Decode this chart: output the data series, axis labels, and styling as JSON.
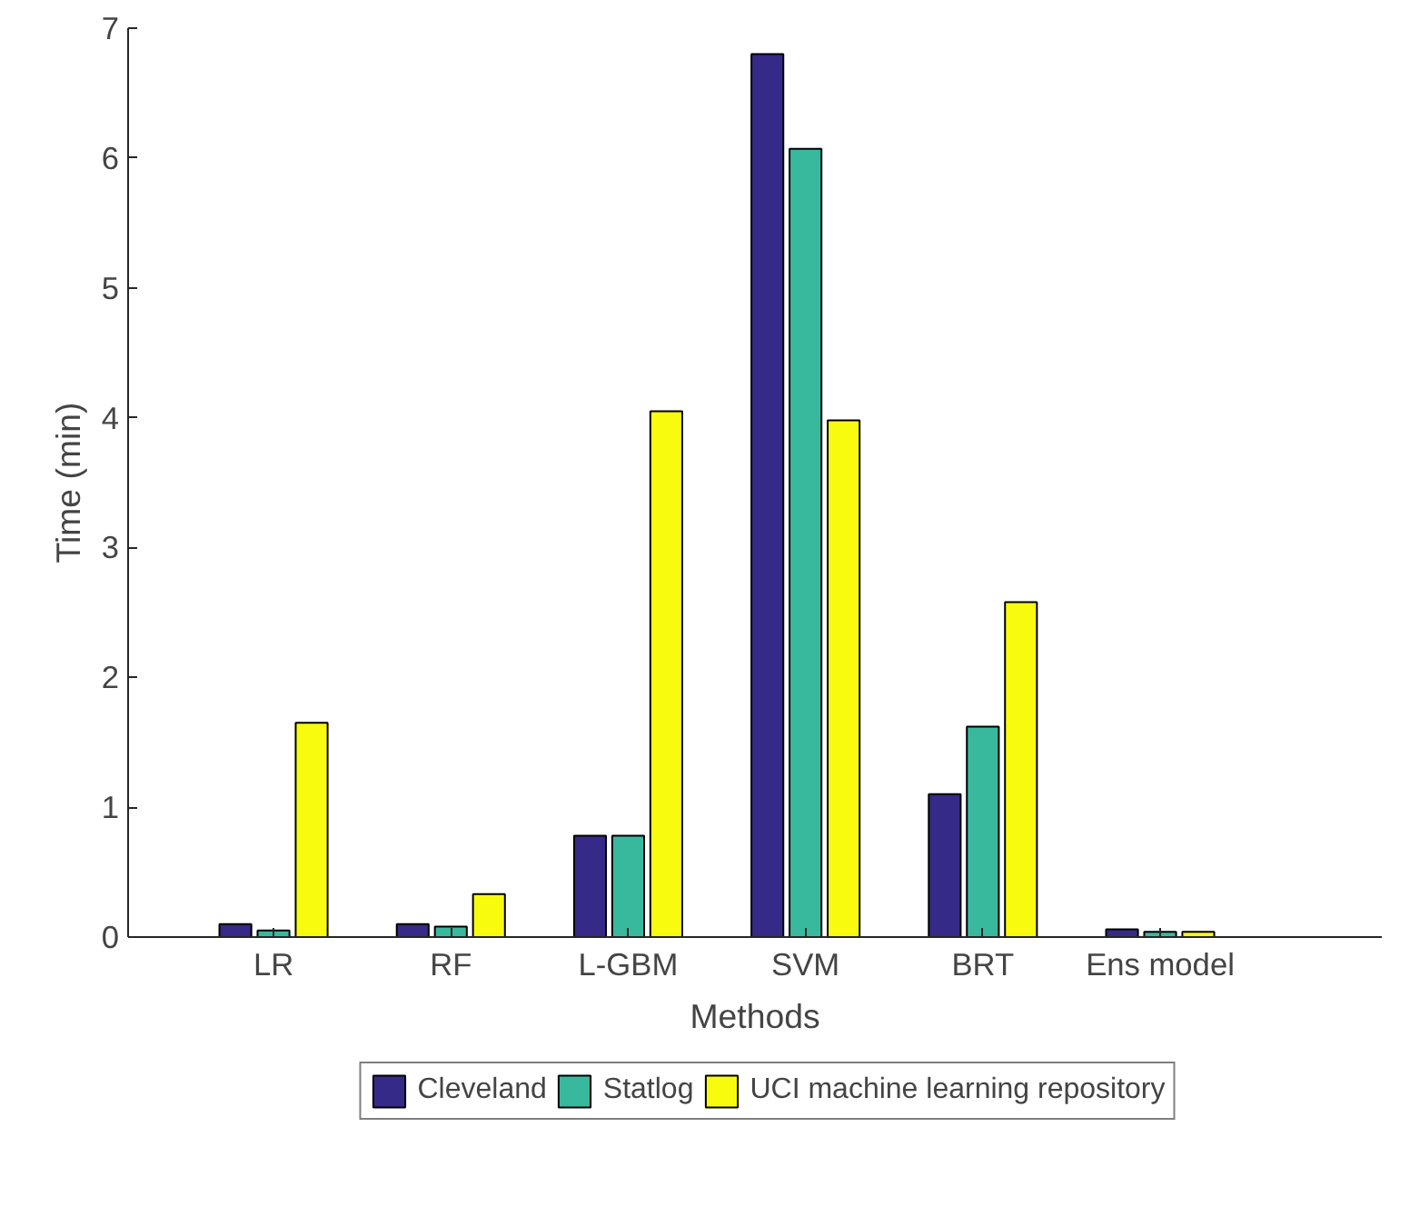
{
  "chart_data": {
    "type": "bar",
    "xlabel": "Methods",
    "ylabel": "Time (min)",
    "categories": [
      "LR",
      "RF",
      "L-GBM",
      "SVM",
      "BRT",
      "Ens model"
    ],
    "series": [
      {
        "name": "Cleveland",
        "color": "#352a87",
        "values": [
          0.1,
          0.1,
          0.78,
          6.8,
          1.1,
          0.06
        ]
      },
      {
        "name": "Statlog",
        "color": "#38b99e",
        "values": [
          0.05,
          0.08,
          0.78,
          6.07,
          1.62,
          0.04
        ]
      },
      {
        "name": "UCI machine learning repository",
        "color": "#f9fb0e",
        "values": [
          1.65,
          0.33,
          4.05,
          3.98,
          2.58,
          0.04
        ]
      }
    ],
    "ylim": [
      0,
      7
    ],
    "yticks": [
      0,
      1,
      2,
      3,
      4,
      5,
      6,
      7
    ],
    "grid": false,
    "legend": "bottom"
  }
}
